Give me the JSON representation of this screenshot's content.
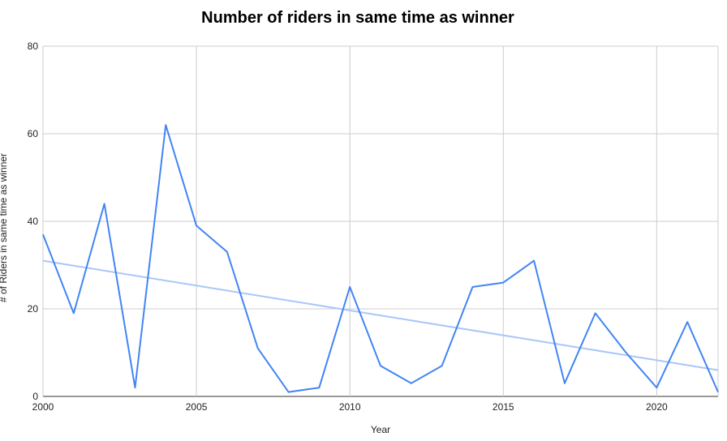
{
  "chart_data": {
    "type": "line",
    "title": "Number of riders in same time as winner",
    "xlabel": "Year",
    "ylabel": "# of Riders in same time as winner",
    "xlim": [
      2000,
      2022
    ],
    "ylim": [
      0,
      80
    ],
    "x_ticks": [
      "2000",
      "2005",
      "2010",
      "2015",
      "2020"
    ],
    "y_ticks": [
      "0",
      "20",
      "40",
      "60",
      "80"
    ],
    "grid": true,
    "legend": "none",
    "colors": {
      "series": "#4285f4",
      "trendline": "#a8c7fa"
    },
    "x": [
      2000,
      2001,
      2002,
      2003,
      2004,
      2005,
      2006,
      2007,
      2008,
      2009,
      2010,
      2011,
      2012,
      2013,
      2014,
      2015,
      2016,
      2017,
      2018,
      2019,
      2020,
      2021,
      2022
    ],
    "series": [
      {
        "values": [
          37,
          19,
          44,
          2,
          62,
          39,
          33,
          11,
          1,
          2,
          25,
          7,
          3,
          7,
          25,
          26,
          31,
          3,
          19,
          10,
          2,
          17,
          1
        ]
      }
    ],
    "trendline": {
      "type": "linear",
      "start": [
        2000,
        31
      ],
      "end": [
        2022,
        6
      ]
    }
  }
}
